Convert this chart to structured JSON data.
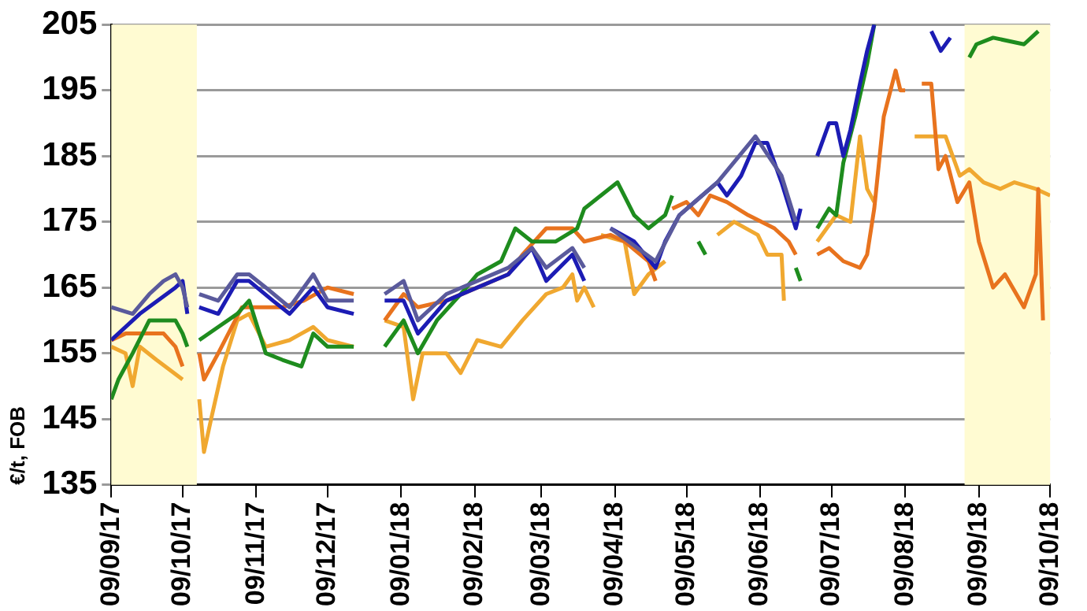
{
  "chart_data": {
    "type": "line",
    "ylabel": "€/t, FOB",
    "ylim": [
      135,
      205
    ],
    "yticks": [
      135,
      145,
      155,
      165,
      175,
      185,
      195,
      205
    ],
    "xlim": [
      "2017-09-09",
      "2018-10-09"
    ],
    "xticks": [
      {
        "value": "2017-09-09",
        "label": "09/09/17"
      },
      {
        "value": "2017-10-09",
        "label": "09/10/17"
      },
      {
        "value": "2017-11-09",
        "label": "09/11/17"
      },
      {
        "value": "2017-12-09",
        "label": "09/12/17"
      },
      {
        "value": "2018-01-09",
        "label": "09/01/18"
      },
      {
        "value": "2018-02-09",
        "label": "09/02/18"
      },
      {
        "value": "2018-03-09",
        "label": "09/03/18"
      },
      {
        "value": "2018-04-09",
        "label": "09/04/18"
      },
      {
        "value": "2018-05-09",
        "label": "09/05/18"
      },
      {
        "value": "2018-06-09",
        "label": "09/06/18"
      },
      {
        "value": "2018-07-09",
        "label": "09/07/18"
      },
      {
        "value": "2018-08-09",
        "label": "09/08/18"
      },
      {
        "value": "2018-09-09",
        "label": "09/09/18"
      },
      {
        "value": "2018-10-09",
        "label": "09/10/18"
      }
    ],
    "grid": "y",
    "legend": false,
    "bands": [
      {
        "axis": "x",
        "from": "2017-09-09",
        "to": "2017-10-15",
        "color": "#fffbd2"
      },
      {
        "axis": "x",
        "from": "2018-09-03",
        "to": "2018-10-09",
        "color": "#fffbd2"
      }
    ],
    "series": [
      {
        "color": "#5a5a9c",
        "x": [
          "2017-09-09",
          "2017-09-18",
          "2017-09-25",
          "2017-10-01",
          "2017-10-06",
          "2017-10-09",
          "2017-10-11",
          "2017-10-13",
          "2017-10-16",
          "2017-10-24",
          "2017-11-01",
          "2017-11-06",
          "2017-11-13",
          "2017-11-23",
          "2017-12-03",
          "2017-12-09",
          "2017-12-20",
          "2017-12-27",
          "2018-01-02",
          "2018-01-10",
          "2018-01-16",
          "2018-01-28",
          "2018-02-23",
          "2018-03-05",
          "2018-03-11",
          "2018-03-22",
          "2018-03-27",
          "2018-03-31",
          "2018-04-07",
          "2018-04-26",
          "2018-05-06",
          "2018-05-22",
          "2018-06-07",
          "2018-06-18",
          "2018-06-24"
        ],
        "values": [
          162,
          161,
          164,
          166,
          167,
          165,
          162,
          null,
          164,
          163,
          167,
          167,
          165,
          162,
          167,
          163,
          163,
          null,
          164,
          166,
          160,
          164,
          168,
          171,
          168,
          171,
          168,
          null,
          174,
          169,
          176,
          181,
          188,
          182,
          175
        ]
      },
      {
        "color": "#1c1cb4",
        "x": [
          "2017-09-09",
          "2017-09-21",
          "2017-10-06",
          "2017-10-09",
          "2017-10-11",
          "2017-10-13",
          "2017-10-16",
          "2017-10-24",
          "2017-11-01",
          "2017-11-06",
          "2017-11-16",
          "2017-11-23",
          "2017-12-03",
          "2017-12-09",
          "2017-12-20",
          "2017-12-27",
          "2018-01-02",
          "2018-01-10",
          "2018-01-16",
          "2018-01-28",
          "2018-02-23",
          "2018-03-05",
          "2018-03-11",
          "2018-03-22",
          "2018-03-27",
          "2018-03-31",
          "2018-04-07",
          "2018-04-17",
          "2018-04-26",
          "2018-04-30",
          "2018-05-06",
          "2018-05-22",
          "2018-05-26",
          "2018-06-01",
          "2018-06-07",
          "2018-06-12",
          "2018-06-18",
          "2018-06-24",
          "2018-06-26",
          "2018-06-30",
          "2018-07-03",
          "2018-07-08",
          "2018-07-11",
          "2018-07-14",
          "2018-07-17",
          "2018-07-21",
          "2018-07-24",
          "2018-07-27",
          "2018-08-01",
          "2018-08-20",
          "2018-08-24",
          "2018-08-28"
        ],
        "values": [
          157,
          161,
          165,
          166,
          161,
          null,
          162,
          161,
          166,
          166,
          163,
          161,
          165,
          162,
          161,
          null,
          163,
          163,
          158,
          163,
          167,
          171,
          166,
          170,
          166,
          null,
          174,
          172,
          168,
          172,
          176,
          181,
          179,
          182,
          187,
          187,
          181,
          174,
          177,
          null,
          185,
          190,
          190,
          185,
          189,
          196,
          201,
          205,
          null,
          204,
          201,
          203
        ]
      },
      {
        "color": "#1e8c1e",
        "x": [
          "2017-09-09",
          "2017-09-12",
          "2017-09-18",
          "2017-09-25",
          "2017-10-01",
          "2017-10-06",
          "2017-10-09",
          "2017-10-11",
          "2017-10-13",
          "2017-10-16",
          "2017-10-24",
          "2017-11-01",
          "2017-11-06",
          "2017-11-13",
          "2017-11-20",
          "2017-11-28",
          "2017-12-03",
          "2017-12-09",
          "2017-12-20",
          "2017-12-27",
          "2018-01-02",
          "2018-01-10",
          "2018-01-16",
          "2018-01-24",
          "2018-02-03",
          "2018-02-10",
          "2018-02-20",
          "2018-02-26",
          "2018-03-05",
          "2018-03-15",
          "2018-03-24",
          "2018-03-27",
          "2018-04-03",
          "2018-04-10",
          "2018-04-17",
          "2018-04-23",
          "2018-04-30",
          "2018-05-03",
          "2018-05-08",
          "2018-05-14",
          "2018-05-17",
          "2018-05-20",
          "2018-06-24",
          "2018-06-26",
          "2018-06-30",
          "2018-07-03",
          "2018-07-08",
          "2018-07-11",
          "2018-07-14",
          "2018-07-19",
          "2018-07-24",
          "2018-07-27",
          "2018-08-01",
          "2018-09-05",
          "2018-09-08",
          "2018-09-15",
          "2018-09-28",
          "2018-10-04"
        ],
        "values": [
          148,
          151,
          155,
          160,
          160,
          160,
          158,
          156,
          null,
          157,
          159,
          161,
          163,
          155,
          154,
          153,
          158,
          156,
          156,
          null,
          156,
          160,
          155,
          160,
          164,
          167,
          169,
          174,
          172,
          172,
          174,
          177,
          179,
          181,
          176,
          174,
          176,
          179,
          null,
          172,
          170,
          null,
          168,
          166,
          null,
          174,
          177,
          176,
          184,
          191,
          199,
          205,
          null,
          200,
          202,
          203,
          202,
          204
        ]
      },
      {
        "color": "#e8731e",
        "x": [
          "2017-09-09",
          "2017-09-15",
          "2017-09-25",
          "2017-10-01",
          "2017-10-06",
          "2017-10-09",
          "2017-10-13",
          "2017-10-16",
          "2017-10-18",
          "2017-10-24",
          "2017-11-03",
          "2017-11-13",
          "2017-11-20",
          "2017-11-29",
          "2017-12-09",
          "2017-12-20",
          "2017-12-27",
          "2018-01-02",
          "2018-01-10",
          "2018-01-16",
          "2018-01-28",
          "2018-02-10",
          "2018-02-23",
          "2018-03-01",
          "2018-03-11",
          "2018-03-22",
          "2018-03-27",
          "2018-04-07",
          "2018-04-13",
          "2018-04-23",
          "2018-04-26",
          "2018-04-28",
          "2018-05-03",
          "2018-05-09",
          "2018-05-14",
          "2018-05-19",
          "2018-05-26",
          "2018-06-04",
          "2018-06-15",
          "2018-06-21",
          "2018-06-24",
          "2018-06-28",
          "2018-07-03",
          "2018-07-08",
          "2018-07-14",
          "2018-07-21",
          "2018-07-24",
          "2018-07-27",
          "2018-07-31",
          "2018-08-05",
          "2018-08-07",
          "2018-08-09",
          "2018-08-12",
          "2018-08-16",
          "2018-08-20",
          "2018-08-23",
          "2018-08-26",
          "2018-08-31",
          "2018-09-05",
          "2018-09-09",
          "2018-09-15",
          "2018-09-20",
          "2018-09-28",
          "2018-10-03",
          "2018-10-04",
          "2018-10-06"
        ],
        "values": [
          157,
          158,
          158,
          158,
          156,
          153,
          null,
          155,
          151,
          155,
          162,
          162,
          162,
          163,
          165,
          164,
          null,
          160,
          164,
          162,
          163,
          165,
          167,
          170,
          174,
          174,
          172,
          173,
          172,
          169,
          166,
          null,
          177,
          178,
          176,
          179,
          178,
          176,
          174,
          172,
          170,
          null,
          170,
          171,
          169,
          168,
          170,
          177,
          191,
          198,
          195,
          195,
          null,
          196,
          196,
          183,
          185,
          178,
          181,
          172,
          165,
          167,
          162,
          167,
          180,
          160
        ]
      },
      {
        "color": "#f0a830",
        "x": [
          "2017-09-09",
          "2017-09-15",
          "2017-09-18",
          "2017-09-21",
          "2017-09-28",
          "2017-10-09",
          "2017-10-13",
          "2017-10-16",
          "2017-10-18",
          "2017-10-21",
          "2017-10-26",
          "2017-11-01",
          "2017-11-06",
          "2017-11-13",
          "2017-11-23",
          "2017-11-28",
          "2017-12-03",
          "2017-12-09",
          "2017-12-20",
          "2017-12-27",
          "2018-01-02",
          "2018-01-10",
          "2018-01-14",
          "2018-01-18",
          "2018-01-28",
          "2018-02-03",
          "2018-02-10",
          "2018-02-20",
          "2018-03-01",
          "2018-03-11",
          "2018-03-18",
          "2018-03-22",
          "2018-03-24",
          "2018-03-27",
          "2018-03-31",
          "2018-04-02",
          "2018-04-03",
          "2018-04-13",
          "2018-04-17",
          "2018-04-23",
          "2018-04-30",
          "2018-05-10",
          "2018-05-22",
          "2018-05-29",
          "2018-06-08",
          "2018-06-12",
          "2018-06-18",
          "2018-06-19",
          "2018-06-28",
          "2018-07-03",
          "2018-07-11",
          "2018-07-17",
          "2018-07-21",
          "2018-07-24",
          "2018-07-27",
          "2018-08-05",
          "2018-08-13",
          "2018-08-20",
          "2018-08-26",
          "2018-09-01",
          "2018-09-05",
          "2018-09-11",
          "2018-09-18",
          "2018-09-24",
          "2018-10-03",
          "2018-10-09"
        ],
        "values": [
          156,
          155,
          150,
          156,
          154,
          151,
          null,
          148,
          140,
          145,
          153,
          160,
          161,
          156,
          157,
          158,
          159,
          157,
          156,
          null,
          160,
          159,
          148,
          155,
          155,
          152,
          157,
          156,
          160,
          164,
          165,
          167,
          163,
          165,
          162,
          null,
          173,
          172,
          164,
          167,
          169,
          null,
          173,
          175,
          173,
          170,
          170,
          163,
          null,
          172,
          176,
          175,
          188,
          180,
          178,
          null,
          188,
          188,
          188,
          182,
          183,
          181,
          180,
          181,
          180,
          179
        ]
      }
    ]
  }
}
